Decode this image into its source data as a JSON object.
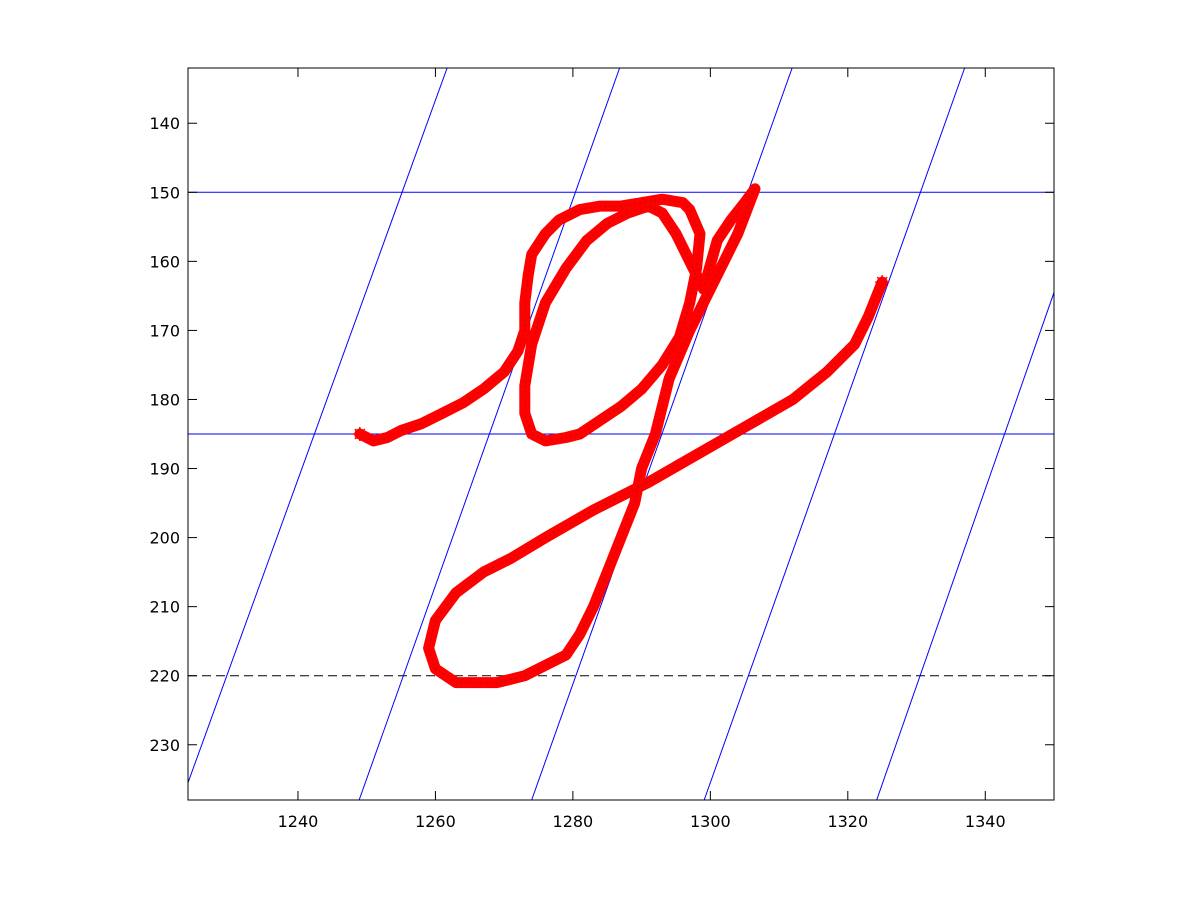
{
  "chart_data": {
    "type": "line",
    "title": "",
    "xlabel": "",
    "ylabel": "",
    "xlim": [
      1224,
      1350
    ],
    "ylim": [
      132,
      238
    ],
    "y_reversed": true,
    "grid": false,
    "legend": "none",
    "x_ticks": [
      1240,
      1260,
      1280,
      1300,
      1320,
      1340
    ],
    "y_ticks": [
      140,
      150,
      160,
      170,
      180,
      190,
      200,
      210,
      220,
      230
    ],
    "colors": {
      "stroke": "#ff0000",
      "guides": "#0000ff",
      "dashed": "#000000",
      "axes": "#000000"
    },
    "guide_lines": {
      "horizontal": [
        150,
        185
      ],
      "dashed_horizontal": [
        220
      ],
      "slanted": [
        {
          "x1": 1224,
          "y1": 235.5,
          "x2": 1261.7,
          "y2": 132
        },
        {
          "x1": 1248.9,
          "y1": 238,
          "x2": 1286.8,
          "y2": 132
        },
        {
          "x1": 1274.0,
          "y1": 238,
          "x2": 1311.9,
          "y2": 132
        },
        {
          "x1": 1299.1,
          "y1": 238,
          "x2": 1337.0,
          "y2": 132
        },
        {
          "x1": 1324.2,
          "y1": 238,
          "x2": 1350,
          "y2": 164.5
        }
      ]
    },
    "series": [
      {
        "marker": "star",
        "x": [
          1249,
          1251,
          1253,
          1255,
          1258,
          1261,
          1264,
          1267,
          1270,
          1272,
          1273,
          1273,
          1273.5,
          1274,
          1276,
          1278,
          1281,
          1284,
          1287,
          1290,
          1293,
          1296,
          1297,
          1298.5,
          1298,
          1297,
          1295.5,
          1293,
          1290,
          1287,
          1284,
          1281,
          1279,
          1276,
          1274,
          1273,
          1273,
          1274,
          1276,
          1279,
          1282,
          1285,
          1288,
          1291,
          1293,
          1295,
          1297,
          1299,
          1301,
          1303,
          1305,
          1306.5,
          1304,
          1301,
          1297,
          1294,
          1292,
          1290,
          1289,
          1287,
          1285,
          1283,
          1281,
          1279,
          1277,
          1273,
          1269,
          1266,
          1263,
          1260,
          1259,
          1260,
          1263,
          1267,
          1271,
          1276,
          1283,
          1291,
          1298,
          1305,
          1312,
          1317,
          1321,
          1323,
          1325
        ],
        "y": [
          185,
          186,
          185.5,
          184.5,
          183.5,
          182,
          180.5,
          178.5,
          176,
          173,
          170,
          166,
          162,
          159,
          156,
          154,
          152.5,
          152,
          152,
          151.5,
          151,
          151.5,
          152.5,
          156,
          161,
          166,
          171,
          175,
          178.5,
          181,
          183,
          185,
          185.5,
          186,
          185,
          182,
          178,
          172,
          166,
          161,
          157,
          154.5,
          153,
          152,
          153,
          156,
          160,
          164,
          157,
          154,
          151.5,
          149.5,
          156,
          162,
          170,
          177,
          185,
          190,
          195,
          200,
          205,
          210,
          214,
          217,
          218,
          220,
          221,
          221,
          221,
          219,
          216,
          212,
          208,
          205,
          203,
          200,
          196,
          192,
          188,
          184,
          180,
          176,
          172,
          168,
          163
        ]
      }
    ]
  }
}
